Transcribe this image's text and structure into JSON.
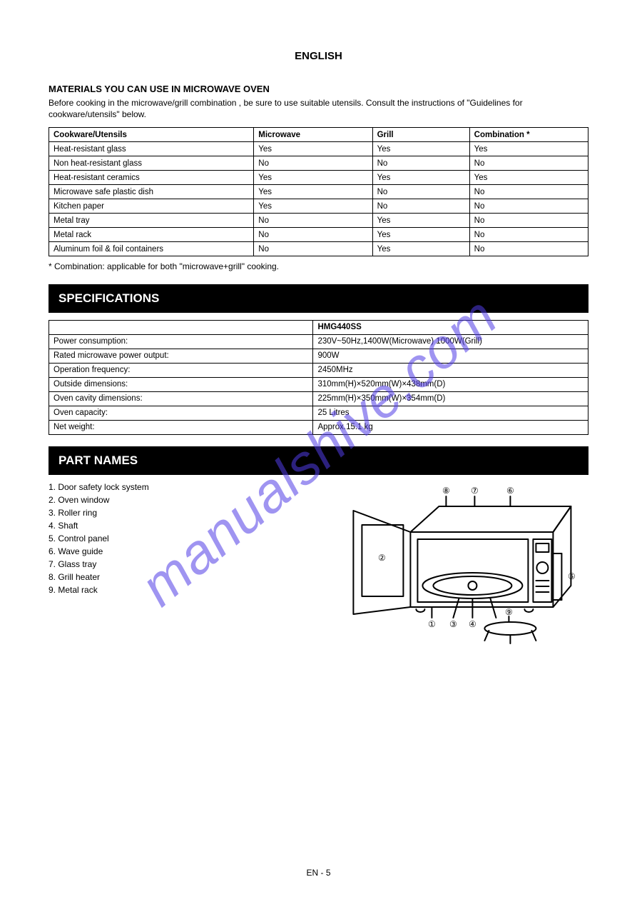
{
  "watermark": "manualshive.com",
  "header": {
    "language": "ENGLISH"
  },
  "materials": {
    "title": "MATERIALS YOU CAN USE IN MICROWAVE OVEN",
    "intro": "Before cooking in the  microwave/grill combination , be sure to use suitable utensils.  Consult the instructions of \"Guidelines for cookware/utensils\" below.",
    "columns": [
      "Cookware/Utensils",
      "Microwave",
      "Grill",
      "Combination *"
    ],
    "rows": [
      [
        "Heat-resistant glass",
        "Yes",
        "Yes",
        "Yes"
      ],
      [
        "Non heat-resistant glass",
        "No",
        "No",
        "No"
      ],
      [
        "Heat-resistant ceramics",
        "Yes",
        "Yes",
        "Yes"
      ],
      [
        "Microwave safe plastic dish",
        "Yes",
        "No",
        "No"
      ],
      [
        "Kitchen paper",
        "Yes",
        "No",
        "No"
      ],
      [
        "Metal tray",
        "No",
        "Yes",
        "No"
      ],
      [
        "Metal rack",
        "No",
        "Yes",
        "No"
      ],
      [
        "Aluminum foil & foil containers",
        "No",
        "Yes",
        "No"
      ]
    ],
    "footnote": "* Combination: applicable for both \"microwave+grill\" cooking."
  },
  "spec": {
    "heading": "SPECIFICATIONS",
    "columns": [
      "",
      "HMG440SS"
    ],
    "rows": [
      [
        "Power consumption:",
        "230V~50Hz,1400W(Microwave)  1000W(Grill)"
      ],
      [
        "Rated microwave power output:",
        "900W"
      ],
      [
        "Operation frequency:",
        "2450MHz"
      ],
      [
        "Outside dimensions:",
        "310mm(H)×520mm(W)×438mm(D)"
      ],
      [
        "Oven cavity dimensions:",
        "225mm(H)×350mm(W)×354mm(D)"
      ],
      [
        "Oven capacity:",
        "25 Litres"
      ],
      [
        "Net weight:",
        "Approx.15.1 kg"
      ]
    ]
  },
  "names": {
    "heading": "PART NAMES",
    "items": [
      "1.  Door safety lock system",
      "2.  Oven window",
      "3.  Roller ring",
      "4.  Shaft",
      "5.  Control panel",
      "6.  Wave guide",
      "7.  Glass tray",
      "8.  Grill heater",
      "9.  Metal rack"
    ]
  },
  "diagram": {
    "callouts": [
      "①",
      "②",
      "③",
      "④",
      "⑤",
      "⑥",
      "⑦",
      "⑧",
      "⑨"
    ],
    "stroke": "#000000",
    "fill": "#ffffff"
  },
  "footer": {
    "page": "EN - 5"
  }
}
